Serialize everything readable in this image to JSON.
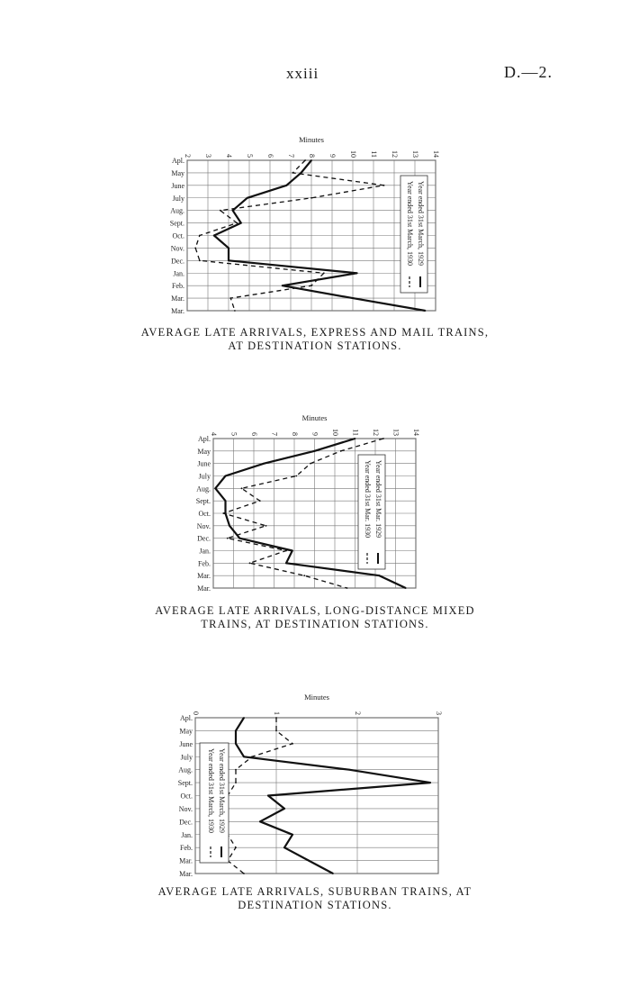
{
  "header": {
    "page_number": "xxiii",
    "page_ref": "D.—2."
  },
  "chart_data": [
    {
      "type": "line",
      "ylabel": "Minutes",
      "y_ticks": [
        "2",
        "3",
        "4",
        "5",
        "6",
        "7",
        "8",
        "9",
        "10",
        "11",
        "12",
        "13",
        "14"
      ],
      "ylim": [
        2,
        14
      ],
      "categories": [
        "Apl.",
        "May",
        "June",
        "July",
        "Aug.",
        "Sept.",
        "Oct.",
        "Nov.",
        "Dec.",
        "Jan.",
        "Feb.",
        "Mar.",
        "Mar."
      ],
      "series": [
        {
          "name": "Year ended 31st March, 1929",
          "style": "solid",
          "values": [
            8.0,
            7.5,
            6.8,
            4.9,
            4.2,
            4.6,
            3.3,
            4.0,
            4.0,
            10.2,
            6.6,
            10.0,
            13.5
          ]
        },
        {
          "name": "Year ended 31st March, 1930",
          "style": "dashed",
          "values": [
            7.7,
            7.1,
            11.5,
            8.0,
            3.6,
            4.4,
            2.6,
            2.4,
            2.6,
            8.6,
            8.0,
            4.1,
            4.3
          ]
        }
      ],
      "grid": true,
      "legend": "right, rotated",
      "caption": [
        "Average Late Arrivals, Express and Mail Trains,",
        "at Destination Stations."
      ]
    },
    {
      "type": "line",
      "ylabel": "Minutes",
      "y_ticks": [
        "4",
        "5",
        "6",
        "7",
        "8",
        "9",
        "10",
        "11",
        "12",
        "13",
        "14"
      ],
      "ylim": [
        4,
        14
      ],
      "categories": [
        "Apl.",
        "May",
        "June",
        "July",
        "Aug.",
        "Sept.",
        "Oct.",
        "Nov.",
        "Dec.",
        "Jan.",
        "Feb.",
        "Mar.",
        "Mar."
      ],
      "series": [
        {
          "name": "Year ended 31st Mar. 1929",
          "style": "solid",
          "values": [
            11.0,
            9.0,
            6.5,
            4.6,
            4.1,
            4.6,
            4.6,
            4.8,
            5.3,
            7.9,
            7.6,
            12.2,
            13.5
          ]
        },
        {
          "name": "Year ended 31st Mar. 1930",
          "style": "dashed",
          "values": [
            12.4,
            10.3,
            8.8,
            8.1,
            5.4,
            6.3,
            4.5,
            6.6,
            4.7,
            7.6,
            5.8,
            8.5,
            10.6
          ]
        }
      ],
      "grid": true,
      "legend": "right, rotated",
      "caption": [
        "Average Late Arrivals, Long-distance Mixed",
        "Trains, at Destination Stations."
      ]
    },
    {
      "type": "line",
      "ylabel": "Minutes",
      "y_ticks": [
        "0",
        "1",
        "2",
        "3"
      ],
      "ylim": [
        0,
        3
      ],
      "categories": [
        "Apl.",
        "May",
        "June",
        "July",
        "Aug.",
        "Sept.",
        "Oct.",
        "Nov.",
        "Dec.",
        "Jan.",
        "Feb.",
        "Mar.",
        "Mar."
      ],
      "series": [
        {
          "name": "Year ended 31st March, 1929",
          "style": "solid",
          "values": [
            0.6,
            0.5,
            0.5,
            0.6,
            1.9,
            2.9,
            0.9,
            1.1,
            0.8,
            1.2,
            1.1,
            1.4,
            1.7
          ]
        },
        {
          "name": "Year ended 31st March, 1930",
          "style": "dashed",
          "values": [
            1.0,
            1.0,
            1.2,
            0.7,
            0.5,
            0.5,
            0.4,
            0.4,
            0.4,
            0.4,
            0.5,
            0.4,
            0.6
          ]
        }
      ],
      "grid": true,
      "legend": "left, rotated",
      "caption": [
        "Average Late Arrivals, Suburban Trains, at",
        "Destination Stations."
      ]
    }
  ]
}
